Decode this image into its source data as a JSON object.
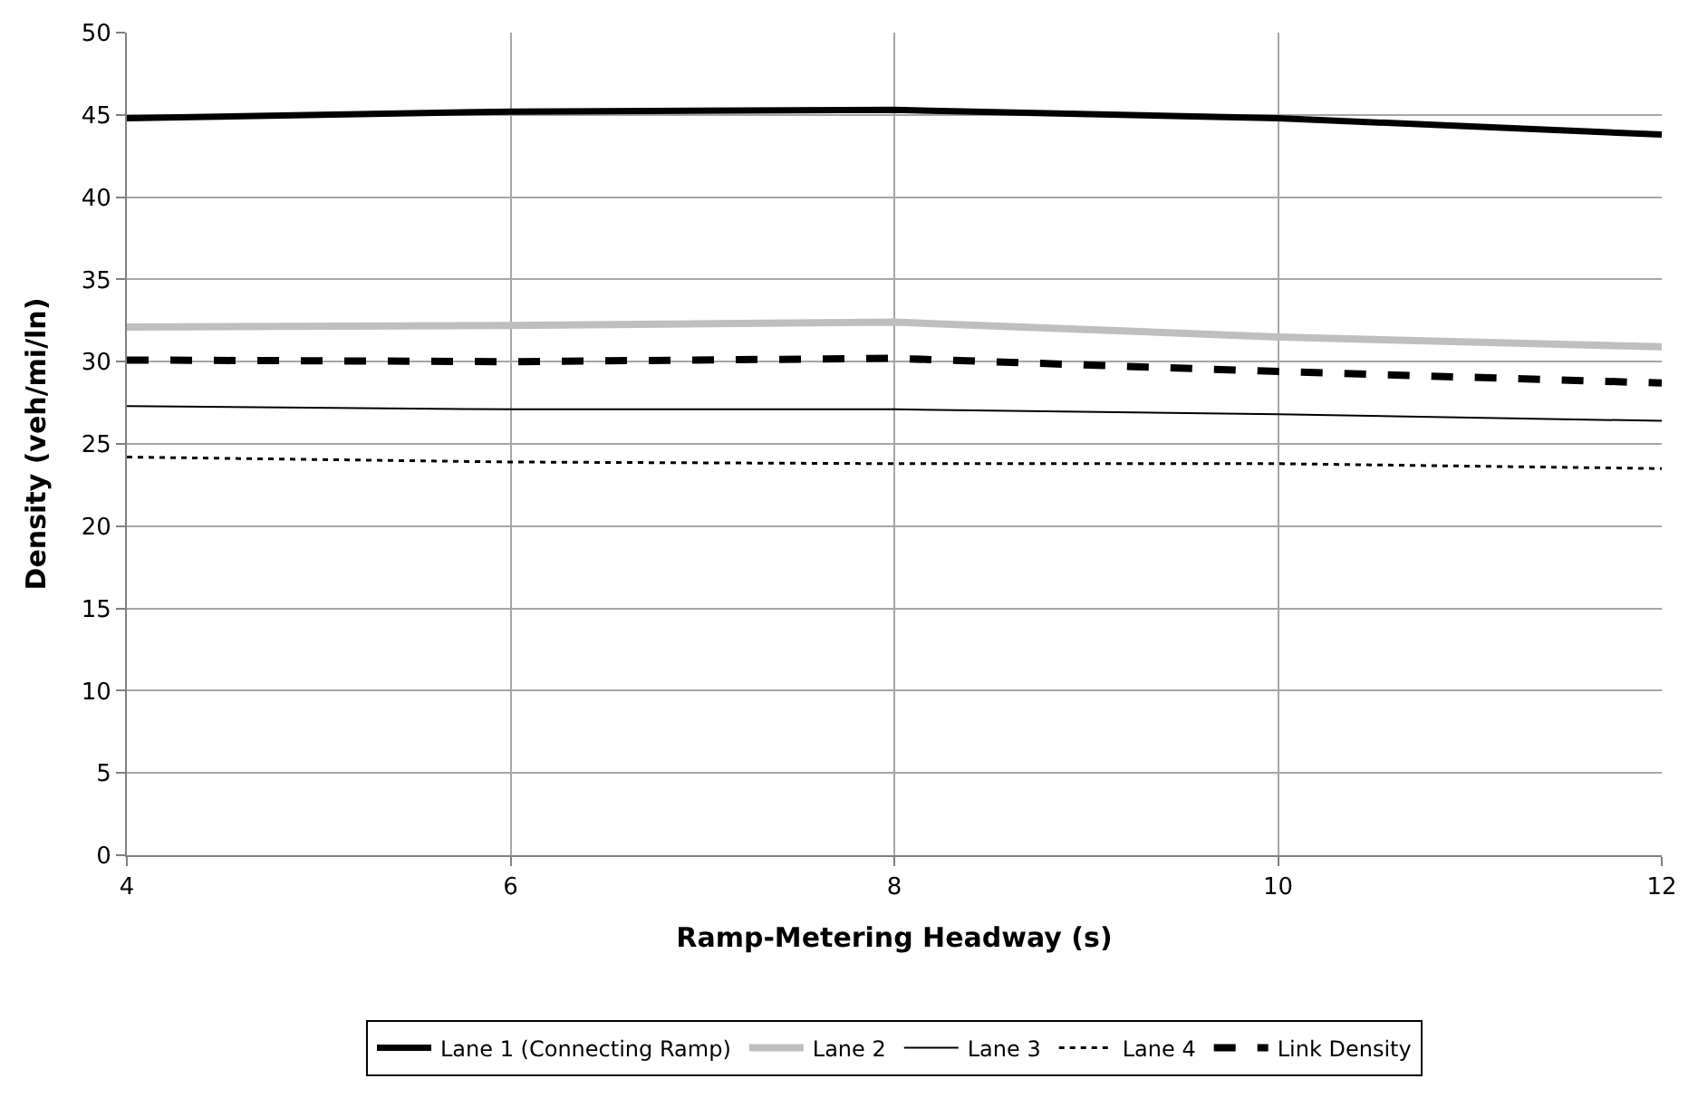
{
  "chart_data": {
    "type": "line",
    "xlabel": "Ramp-Metering Headway (s)",
    "ylabel": "Density (veh/mi/ln)",
    "x": [
      4,
      6,
      8,
      10,
      12
    ],
    "xlim": [
      4,
      12
    ],
    "xticks": [
      4,
      6,
      8,
      10,
      12
    ],
    "ylim": [
      0,
      50
    ],
    "yticks": [
      0,
      5,
      10,
      15,
      20,
      25,
      30,
      35,
      40,
      45,
      50
    ],
    "grid": true,
    "legend": "bottom",
    "marker": "none",
    "series": [
      {
        "name": "Lane 1 (Connecting Ramp)",
        "color": "#000000",
        "values": [
          44.8,
          45.2,
          45.3,
          44.8,
          43.8
        ],
        "line_style": "solid"
      },
      {
        "name": "Lane 2",
        "color": "#bfbfbf",
        "values": [
          32.1,
          32.2,
          32.4,
          31.5,
          30.9
        ],
        "line_style": "solid"
      },
      {
        "name": "Lane 3",
        "color": "#000000",
        "values": [
          27.3,
          27.1,
          27.1,
          26.8,
          26.4
        ],
        "line_style": "solid"
      },
      {
        "name": "Lane 4",
        "color": "#000000",
        "values": [
          24.2,
          23.9,
          23.8,
          23.8,
          23.5
        ],
        "line_style": "dotted"
      },
      {
        "name": "Link Density",
        "color": "#000000",
        "values": [
          30.1,
          30.0,
          30.2,
          29.4,
          28.7
        ],
        "line_style": "dashed"
      }
    ]
  }
}
